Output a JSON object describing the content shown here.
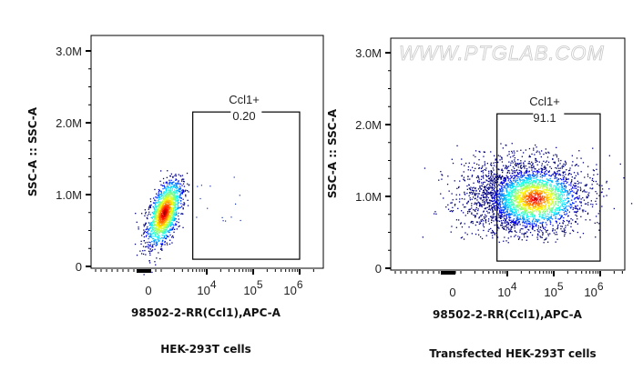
{
  "watermark": "WWW.PTGLAB.COM",
  "chart_data": [
    {
      "type": "scatter",
      "title": "HEK-293T cells",
      "xlabel": "98502-2-RR(Ccl1),APC-A",
      "ylabel": "SSC-A :: SSC-A",
      "x_scale": "biexponential",
      "y_scale": "linear",
      "y_ticks": [
        {
          "value": 0,
          "label": "0"
        },
        {
          "value": 1000000,
          "label": "1.0M"
        },
        {
          "value": 2000000,
          "label": "2.0M"
        },
        {
          "value": 3000000,
          "label": "3.0M"
        }
      ],
      "x_ticks": [
        {
          "label": "0"
        },
        {
          "base": "10",
          "exp": "4"
        },
        {
          "base": "10",
          "exp": "5"
        },
        {
          "base": "10",
          "exp": "6"
        }
      ],
      "ylim": [
        0,
        3200000
      ],
      "density_colormap": "jet",
      "population": {
        "x_center": 0,
        "y_center": 750000,
        "y_max": 1350000
      },
      "gate": {
        "name": "Ccl1+",
        "value": "0.20",
        "x_range": [
          5000,
          1000000
        ],
        "y_range": [
          100000,
          2150000
        ]
      }
    },
    {
      "type": "scatter",
      "title": "Transfected HEK-293T cells",
      "xlabel": "98502-2-RR(Ccl1),APC-A",
      "ylabel": "SSC-A :: SSC-A",
      "x_scale": "biexponential",
      "y_scale": "linear",
      "y_ticks": [
        {
          "value": 0,
          "label": "0"
        },
        {
          "value": 1000000,
          "label": "1.0M"
        },
        {
          "value": 2000000,
          "label": "2.0M"
        },
        {
          "value": 3000000,
          "label": "3.0M"
        }
      ],
      "x_ticks": [
        {
          "label": "0"
        },
        {
          "base": "10",
          "exp": "4"
        },
        {
          "base": "10",
          "exp": "5"
        },
        {
          "base": "10",
          "exp": "6"
        }
      ],
      "ylim": [
        0,
        3200000
      ],
      "density_colormap": "jet",
      "population": {
        "x_center": 30000,
        "y_center": 1000000,
        "y_max": 1780000
      },
      "gate": {
        "name": "Ccl1+",
        "value": "91.1",
        "x_range": [
          6000,
          1000000
        ],
        "y_range": [
          100000,
          2150000
        ]
      }
    }
  ]
}
